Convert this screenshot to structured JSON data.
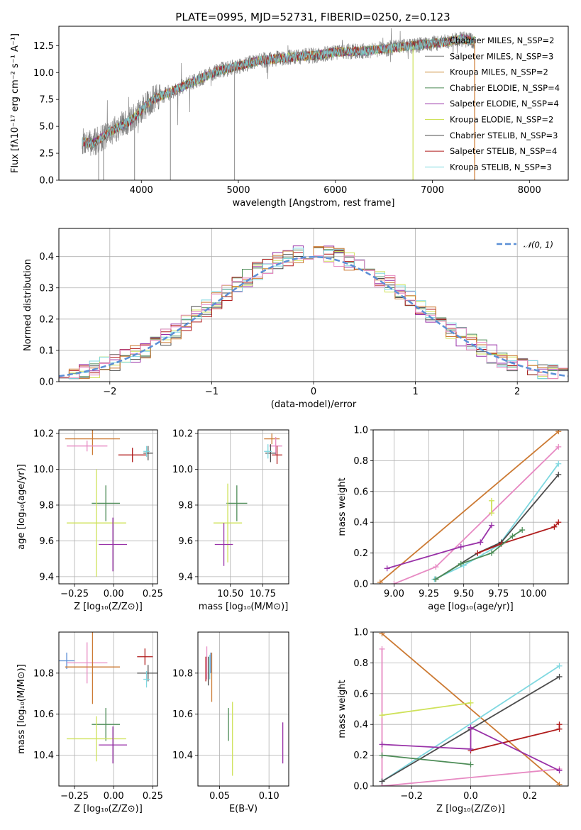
{
  "figure": {
    "title": "PLATE=0995, MJD=52731, FIBERID=0250, z=0.123"
  },
  "chart_data": [
    {
      "id": "spectrum",
      "type": "line",
      "xlabel": "wavelength [Angstrom, rest frame]",
      "ylabel": "Flux [fλ10⁻¹⁷ erg cm⁻² s⁻¹ A⁻¹]",
      "xlim": [
        3150,
        8400
      ],
      "ylim": [
        0,
        14.3
      ],
      "xticks": [
        4000,
        5000,
        6000,
        7000,
        8000
      ],
      "yticks": [
        0.0,
        2.5,
        5.0,
        7.5,
        10.0,
        12.5
      ],
      "ytick_labels": [
        "0.0",
        "2.5",
        "5.0",
        "7.5",
        "10.0",
        "12.5"
      ],
      "grid": false,
      "legend_position": "upper-right",
      "legend": [
        {
          "label": "Chabrier MILES, N_SSP=2",
          "color": "#7f7f7f"
        },
        {
          "label": "Salpeter MILES, N_SSP=3",
          "color": "#7f7f7f"
        },
        {
          "label": "Kroupa MILES, N_SSP=2",
          "color": "#cc8833"
        },
        {
          "label": "Chabrier ELODIE, N_SSP=4",
          "color": "#4d8c57"
        },
        {
          "label": "Salpeter ELODIE, N_SSP=4",
          "color": "#9932a8"
        },
        {
          "label": "Kroupa ELODIE, N_SSP=2",
          "color": "#cfe25a"
        },
        {
          "label": "Chabrier STELIB, N_SSP=3",
          "color": "#4d4d4d"
        },
        {
          "label": "Salpeter STELIB, N_SSP=4",
          "color": "#b01c1c"
        },
        {
          "label": "Kroupa STELIB, N_SSP=3",
          "color": "#7fd8e0"
        }
      ],
      "continuum_shape": [
        [
          3390,
          3.6
        ],
        [
          3500,
          3.4
        ],
        [
          3700,
          4.6
        ],
        [
          3900,
          5.6
        ],
        [
          4100,
          7.4
        ],
        [
          4300,
          8.2
        ],
        [
          4500,
          9.0
        ],
        [
          4800,
          10.2
        ],
        [
          5000,
          10.6
        ],
        [
          5200,
          11.1
        ],
        [
          5500,
          11.4
        ],
        [
          5800,
          11.6
        ],
        [
          6000,
          11.9
        ],
        [
          6300,
          12.0
        ],
        [
          6600,
          12.3
        ],
        [
          6900,
          12.6
        ],
        [
          7100,
          12.8
        ],
        [
          7300,
          13.1
        ],
        [
          7440,
          12.9
        ]
      ],
      "deep_dips": [
        3560,
        3610,
        3930,
        4300,
        4960,
        6800,
        7435
      ]
    },
    {
      "id": "residuals",
      "type": "line",
      "xlabel": "(data-model)/error",
      "ylabel": "Normed distribution",
      "xlim": [
        -2.5,
        2.5
      ],
      "ylim": [
        0,
        0.49
      ],
      "xticks": [
        -2,
        -1,
        0,
        1,
        2
      ],
      "xtick_labels": [
        "−2",
        "−1",
        "0",
        "1",
        "2"
      ],
      "yticks": [
        0.0,
        0.1,
        0.2,
        0.3,
        0.4
      ],
      "ytick_labels": [
        "0.0",
        "0.1",
        "0.2",
        "0.3",
        "0.4"
      ],
      "grid": true,
      "legend_position": "upper-right",
      "reference_curve": {
        "label": "𝒩(0, 1)",
        "color": "#5b8fd6",
        "mean": 0,
        "sigma": 1
      },
      "histogram_bins": {
        "start": -2.5,
        "width": 0.1,
        "count": 50
      }
    },
    {
      "id": "age-vs-Z",
      "type": "scatter",
      "xlabel": "Z [log₁₀(Z/Z⊙)]",
      "ylabel": "age  [log₁₀(age/yr)]",
      "xlim": [
        -0.35,
        0.28
      ],
      "ylim": [
        9.36,
        10.22
      ],
      "xticks": [
        -0.25,
        0.0,
        0.25
      ],
      "xtick_labels": [
        "−0.25",
        "0.00",
        "0.25"
      ],
      "yticks": [
        9.4,
        9.6,
        9.8,
        10.0,
        10.2
      ],
      "ytick_labels": [
        "9.4",
        "9.6",
        "9.8",
        "10.0",
        "10.2"
      ],
      "grid": true,
      "points": [
        {
          "x": -0.135,
          "xerr": 0.175,
          "y": 10.17,
          "yerr": 0.09,
          "color": "#cc7a33"
        },
        {
          "x": -0.17,
          "xerr": 0.13,
          "y": 10.13,
          "yerr": 0.03,
          "color": "#e78ac3"
        },
        {
          "x": 0.12,
          "xerr": 0.09,
          "y": 10.08,
          "yerr": 0.04,
          "color": "#b01c1c"
        },
        {
          "x": 0.22,
          "xerr": 0.03,
          "y": 10.09,
          "yerr": 0.04,
          "color": "#4d4d4d"
        },
        {
          "x": 0.21,
          "xerr": 0.02,
          "y": 10.1,
          "yerr": 0.03,
          "color": "#7fd8e0"
        },
        {
          "x": -0.05,
          "xerr": 0.09,
          "y": 9.81,
          "yerr": 0.1,
          "color": "#4d8c57"
        },
        {
          "x": -0.11,
          "xerr": 0.19,
          "y": 9.7,
          "yerr": 0.3,
          "color": "#cfe25a"
        },
        {
          "x": -0.005,
          "xerr": 0.09,
          "y": 9.58,
          "yerr": 0.15,
          "color": "#9932a8"
        }
      ]
    },
    {
      "id": "age-vs-mass",
      "type": "scatter",
      "xlabel": "mass [log₁₀(M/M⊙)]",
      "ylabel": "",
      "xlim": [
        10.25,
        10.95
      ],
      "ylim": [
        9.36,
        10.22
      ],
      "xticks": [
        10.5,
        10.75
      ],
      "xtick_labels": [
        "10.50",
        "10.75"
      ],
      "yticks": [
        9.4,
        9.6,
        9.8,
        10.0,
        10.2
      ],
      "ytick_labels": [
        "9.4",
        "9.6",
        "9.8",
        "10.0",
        "10.2"
      ],
      "grid": true,
      "points": [
        {
          "x": 10.82,
          "xerr": 0.06,
          "y": 10.17,
          "yerr": 0.03,
          "color": "#cc7a33"
        },
        {
          "x": 10.85,
          "xerr": 0.05,
          "y": 10.13,
          "yerr": 0.05,
          "color": "#e78ac3"
        },
        {
          "x": 10.86,
          "xerr": 0.04,
          "y": 10.08,
          "yerr": 0.05,
          "color": "#b01c1c"
        },
        {
          "x": 10.81,
          "xerr": 0.04,
          "y": 10.09,
          "yerr": 0.05,
          "color": "#4d4d4d"
        },
        {
          "x": 10.79,
          "xerr": 0.03,
          "y": 10.1,
          "yerr": 0.04,
          "color": "#7fd8e0"
        },
        {
          "x": 10.55,
          "xerr": 0.08,
          "y": 9.81,
          "yerr": 0.1,
          "color": "#4d8c57"
        },
        {
          "x": 10.48,
          "xerr": 0.11,
          "y": 9.7,
          "yerr": 0.22,
          "color": "#cfe25a"
        },
        {
          "x": 10.45,
          "xerr": 0.07,
          "y": 9.58,
          "yerr": 0.12,
          "color": "#9932a8"
        }
      ]
    },
    {
      "id": "mass-weight-vs-age",
      "type": "line",
      "xlabel": "age  [log₁₀(age/yr)]",
      "ylabel": "mass weight",
      "xlim": [
        8.85,
        10.25
      ],
      "ylim": [
        0,
        1.0
      ],
      "xticks": [
        9.0,
        9.25,
        9.5,
        9.75,
        10.0
      ],
      "xtick_labels": [
        "9.00",
        "9.25",
        "9.50",
        "9.75",
        "10.00"
      ],
      "yticks": [
        0.0,
        0.2,
        0.4,
        0.6,
        0.8,
        1.0
      ],
      "ytick_labels": [
        "0.0",
        "0.2",
        "0.4",
        "0.6",
        "0.8",
        "1.0"
      ],
      "grid": true,
      "series": [
        {
          "color": "#cc7a33",
          "points": [
            [
              8.9,
              0.01
            ],
            [
              10.18,
              0.99
            ]
          ]
        },
        {
          "color": "#e78ac3",
          "points": [
            [
              9.0,
              0.0
            ],
            [
              9.3,
              0.11
            ],
            [
              10.18,
              0.89
            ]
          ]
        },
        {
          "color": "#7fd8e0",
          "points": [
            [
              9.29,
              0.03
            ],
            [
              9.5,
              0.12
            ],
            [
              9.75,
              0.25
            ],
            [
              10.18,
              0.78
            ]
          ]
        },
        {
          "color": "#4d4d4d",
          "points": [
            [
              9.3,
              0.03
            ],
            [
              9.6,
              0.2
            ],
            [
              9.77,
              0.27
            ],
            [
              10.18,
              0.71
            ]
          ]
        },
        {
          "color": "#b01c1c",
          "points": [
            [
              9.6,
              0.2
            ],
            [
              9.77,
              0.26
            ],
            [
              10.15,
              0.37
            ],
            [
              10.18,
              0.4
            ]
          ]
        },
        {
          "color": "#4d8c57",
          "points": [
            [
              9.3,
              0.03
            ],
            [
              9.48,
              0.13
            ],
            [
              9.7,
              0.2
            ],
            [
              9.85,
              0.31
            ],
            [
              9.92,
              0.35
            ]
          ]
        },
        {
          "color": "#9932a8",
          "points": [
            [
              8.95,
              0.1
            ],
            [
              9.48,
              0.24
            ],
            [
              9.62,
              0.27
            ],
            [
              9.7,
              0.38
            ]
          ]
        },
        {
          "color": "#cfe25a",
          "points": [
            [
              9.7,
              0.46
            ],
            [
              9.7,
              0.54
            ]
          ]
        }
      ]
    },
    {
      "id": "mass-vs-Z",
      "type": "scatter",
      "xlabel": "Z [log₁₀(Z/Z⊙)]",
      "ylabel": "mass [log₁₀(M/M⊙)]",
      "xlim": [
        -0.35,
        0.28
      ],
      "ylim": [
        10.25,
        11.0
      ],
      "xticks": [
        -0.25,
        0.0,
        0.25
      ],
      "xtick_labels": [
        "−0.25",
        "0.00",
        "0.25"
      ],
      "yticks": [
        10.4,
        10.6,
        10.8
      ],
      "ytick_labels": [
        "10.4",
        "10.6",
        "10.8"
      ],
      "grid": true,
      "points": [
        {
          "x": -0.3,
          "xerr": 0.05,
          "y": 10.86,
          "yerr": 0.04,
          "color": "#5b8fd6"
        },
        {
          "x": -0.17,
          "xerr": 0.13,
          "y": 10.85,
          "yerr": 0.1,
          "color": "#e78ac3"
        },
        {
          "x": -0.135,
          "xerr": 0.175,
          "y": 10.83,
          "yerr": 0.18,
          "color": "#cc7a33"
        },
        {
          "x": 0.2,
          "xerr": 0.05,
          "y": 10.88,
          "yerr": 0.04,
          "color": "#b01c1c"
        },
        {
          "x": 0.22,
          "xerr": 0.07,
          "y": 10.8,
          "yerr": 0.04,
          "color": "#4d4d4d"
        },
        {
          "x": 0.21,
          "xerr": 0.02,
          "y": 10.77,
          "yerr": 0.04,
          "color": "#7fd8e0"
        },
        {
          "x": -0.05,
          "xerr": 0.09,
          "y": 10.55,
          "yerr": 0.08,
          "color": "#4d8c57"
        },
        {
          "x": -0.11,
          "xerr": 0.19,
          "y": 10.48,
          "yerr": 0.11,
          "color": "#cfe25a"
        },
        {
          "x": -0.005,
          "xerr": 0.09,
          "y": 10.45,
          "yerr": 0.09,
          "color": "#9932a8"
        }
      ]
    },
    {
      "id": "mass-vs-ebv",
      "type": "scatter",
      "xlabel": "E(B-V)",
      "ylabel": "",
      "xlim": [
        0.028,
        0.12
      ],
      "ylim": [
        10.25,
        11.0
      ],
      "xticks": [
        0.05,
        0.1
      ],
      "xtick_labels": [
        "0.05",
        "0.10"
      ],
      "yticks": [
        10.4,
        10.6,
        10.8
      ],
      "ytick_labels": [
        "10.4",
        "10.6",
        "10.8"
      ],
      "grid": true,
      "points": [
        {
          "x": 0.037,
          "y": 10.85,
          "yerr": 0.08,
          "color": "#e78ac3"
        },
        {
          "x": 0.036,
          "y": 10.82,
          "yerr": 0.06,
          "color": "#b01c1c"
        },
        {
          "x": 0.0385,
          "y": 10.81,
          "yerr": 0.07,
          "color": "#4d4d4d"
        },
        {
          "x": 0.04,
          "y": 10.83,
          "yerr": 0.06,
          "color": "#7fd8e0"
        },
        {
          "x": 0.041,
          "y": 10.85,
          "yerr": 0.05,
          "color": "#5b8fd6"
        },
        {
          "x": 0.042,
          "y": 10.78,
          "yerr": 0.12,
          "color": "#cc7a33"
        },
        {
          "x": 0.059,
          "y": 10.55,
          "yerr": 0.08,
          "color": "#4d8c57"
        },
        {
          "x": 0.063,
          "y": 10.48,
          "yerr": 0.18,
          "color": "#cfe25a"
        },
        {
          "x": 0.114,
          "y": 10.46,
          "yerr": 0.1,
          "color": "#9932a8"
        }
      ]
    },
    {
      "id": "mass-weight-vs-Z",
      "type": "line",
      "xlabel": "Z [log₁₀(Z/Z⊙)]",
      "ylabel": "mass weight",
      "xlim": [
        -0.33,
        0.33
      ],
      "ylim": [
        0,
        1.0
      ],
      "xticks": [
        -0.2,
        0.0,
        0.2
      ],
      "xtick_labels": [
        "−0.2",
        "0.0",
        "0.2"
      ],
      "yticks": [
        0.0,
        0.2,
        0.4,
        0.6,
        0.8,
        1.0
      ],
      "ytick_labels": [
        "0.0",
        "0.2",
        "0.4",
        "0.6",
        "0.8",
        "1.0"
      ],
      "grid": true,
      "series": [
        {
          "color": "#cc7a33",
          "points": [
            [
              -0.3,
              0.99
            ],
            [
              0.3,
              0.01
            ]
          ]
        },
        {
          "color": "#e78ac3",
          "points": [
            [
              -0.3,
              0.89
            ],
            [
              -0.3,
              0.0
            ],
            [
              0.3,
              0.11
            ]
          ]
        },
        {
          "color": "#7fd8e0",
          "points": [
            [
              -0.3,
              0.03
            ],
            [
              0.3,
              0.78
            ]
          ]
        },
        {
          "color": "#4d4d4d",
          "points": [
            [
              -0.3,
              0.03
            ],
            [
              0.0,
              0.37
            ],
            [
              0.3,
              0.71
            ]
          ]
        },
        {
          "color": "#b01c1c",
          "points": [
            [
              0.0,
              0.23
            ],
            [
              0.3,
              0.37
            ],
            [
              0.3,
              0.4
            ]
          ]
        },
        {
          "color": "#4d8c57",
          "points": [
            [
              -0.3,
              0.2
            ],
            [
              0.0,
              0.14
            ]
          ]
        },
        {
          "color": "#9932a8",
          "points": [
            [
              -0.3,
              0.27
            ],
            [
              0.0,
              0.24
            ],
            [
              0.0,
              0.38
            ],
            [
              0.3,
              0.1
            ]
          ]
        },
        {
          "color": "#cfe25a",
          "points": [
            [
              -0.3,
              0.46
            ],
            [
              0.0,
              0.54
            ]
          ]
        }
      ]
    }
  ]
}
